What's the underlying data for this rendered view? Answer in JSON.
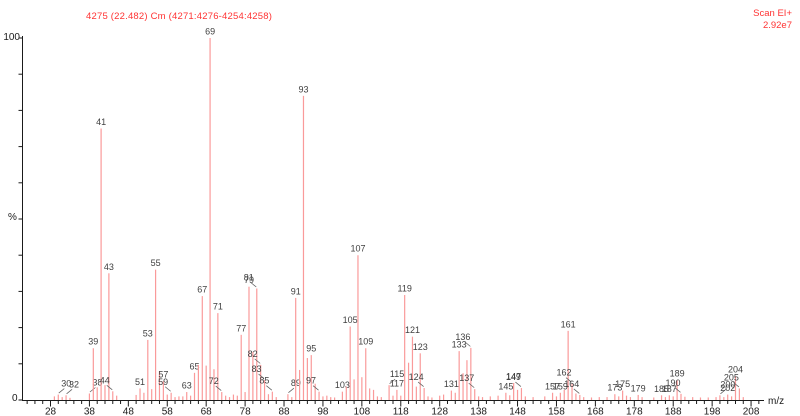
{
  "header": {
    "title": "4275 (22.482) Cm (4271:4276-4254:4258)",
    "scan_mode": "Scan EI+",
    "base_peak_intensity": "2.92e7"
  },
  "colors": {
    "peak": "#fa9a9a",
    "peak_label": "#404040",
    "axis": "#1a1a1a",
    "tick_label": "#1a1a1a",
    "header_red": "#ff3333",
    "callout_line": "#606060"
  },
  "chart_data": {
    "type": "bar",
    "subtype": "mass-spectrum-stick-plot",
    "title": "4275 (22.482) Cm (4271:4276-4254:4258)",
    "scan_mode": "Scan EI+",
    "base_peak_intensity": "2.92e7",
    "xlabel": "m/z",
    "ylabel": "%",
    "y_axis": {
      "top": "100",
      "mid": "%",
      "bottom": "0"
    },
    "xlim": [
      21,
      211
    ],
    "ylim": [
      0,
      100
    ],
    "grid": false,
    "x_major_ticks": [
      28,
      38,
      48,
      58,
      68,
      78,
      88,
      98,
      108,
      118,
      128,
      138,
      148,
      158,
      168,
      178,
      188,
      198,
      208
    ],
    "x_minor_tick_step": 2,
    "y_tick_step_pct": 10,
    "peaks_format": [
      "mz",
      "intensity_pct",
      "labeled",
      "callout_dir"
    ],
    "peaks": [
      [
        29,
        1.0,
        0,
        0
      ],
      [
        30,
        1.5,
        1,
        1
      ],
      [
        31,
        0.8,
        0,
        0
      ],
      [
        32,
        1.3,
        1,
        1
      ],
      [
        33,
        0.6,
        0,
        0
      ],
      [
        38,
        1.8,
        1,
        1
      ],
      [
        39,
        14.3,
        1,
        0
      ],
      [
        40,
        3.5,
        0,
        0
      ],
      [
        41,
        75,
        1,
        0
      ],
      [
        42,
        4.1,
        0,
        0
      ],
      [
        43,
        35,
        1,
        0
      ],
      [
        44,
        2.4,
        1,
        -1
      ],
      [
        45,
        1.2,
        0,
        0
      ],
      [
        50,
        1.4,
        0,
        0
      ],
      [
        51,
        3.2,
        1,
        0
      ],
      [
        52,
        2.0,
        0,
        0
      ],
      [
        53,
        16.6,
        1,
        0
      ],
      [
        54,
        3.0,
        0,
        0
      ],
      [
        55,
        36,
        1,
        0
      ],
      [
        56,
        8.0,
        0,
        0
      ],
      [
        57,
        5.2,
        1,
        0
      ],
      [
        58,
        1.5,
        0,
        0
      ],
      [
        59,
        2.0,
        1,
        -1
      ],
      [
        60,
        0.8,
        0,
        0
      ],
      [
        61,
        1.0,
        0,
        0
      ],
      [
        62,
        1.0,
        0,
        0
      ],
      [
        63,
        2.2,
        1,
        0
      ],
      [
        64,
        1.2,
        0,
        0
      ],
      [
        65,
        7.5,
        1,
        0
      ],
      [
        66,
        9.7,
        0,
        0
      ],
      [
        67,
        28.7,
        1,
        0
      ],
      [
        68,
        9.5,
        0,
        0
      ],
      [
        69,
        100,
        1,
        0
      ],
      [
        70,
        8.5,
        0,
        0
      ],
      [
        71,
        24,
        1,
        0
      ],
      [
        72,
        2.2,
        1,
        -1
      ],
      [
        73,
        1.2,
        0,
        0
      ],
      [
        74,
        0.8,
        0,
        0
      ],
      [
        75,
        1.5,
        0,
        0
      ],
      [
        76,
        1.2,
        0,
        0
      ],
      [
        77,
        18,
        1,
        0
      ],
      [
        78,
        2.2,
        0,
        0
      ],
      [
        79,
        31.3,
        1,
        0
      ],
      [
        80,
        13.3,
        0,
        0
      ],
      [
        81,
        30.8,
        1,
        -1
      ],
      [
        82,
        9.7,
        1,
        -1
      ],
      [
        83,
        5.5,
        1,
        -1
      ],
      [
        84,
        1.6,
        0,
        0
      ],
      [
        85,
        2.3,
        1,
        -1
      ],
      [
        86,
        0.8,
        0,
        0
      ],
      [
        89,
        1.6,
        1,
        1
      ],
      [
        90,
        0.8,
        0,
        0
      ],
      [
        91,
        28.2,
        1,
        0
      ],
      [
        92,
        8.3,
        0,
        0
      ],
      [
        93,
        84,
        1,
        0
      ],
      [
        94,
        11.6,
        0,
        0
      ],
      [
        95,
        12.4,
        1,
        0
      ],
      [
        96,
        4.5,
        0,
        0
      ],
      [
        97,
        2.3,
        1,
        -1
      ],
      [
        98,
        1.0,
        0,
        0
      ],
      [
        99,
        1.2,
        0,
        0
      ],
      [
        100,
        0.8,
        0,
        0
      ],
      [
        101,
        0.7,
        0,
        0
      ],
      [
        103,
        2.3,
        1,
        0
      ],
      [
        104,
        3.7,
        0,
        0
      ],
      [
        105,
        20.3,
        1,
        0
      ],
      [
        106,
        5.7,
        0,
        0
      ],
      [
        107,
        40,
        1,
        0
      ],
      [
        108,
        6.3,
        0,
        0
      ],
      [
        109,
        14.3,
        1,
        0
      ],
      [
        110,
        3.2,
        0,
        0
      ],
      [
        111,
        2.8,
        0,
        0
      ],
      [
        112,
        1.0,
        0,
        0
      ],
      [
        113,
        0.8,
        0,
        0
      ],
      [
        115,
        4.1,
        1,
        1
      ],
      [
        116,
        1.2,
        0,
        0
      ],
      [
        117,
        2.8,
        1,
        0
      ],
      [
        118,
        1.2,
        0,
        0
      ],
      [
        119,
        29,
        1,
        0
      ],
      [
        120,
        10.3,
        0,
        0
      ],
      [
        121,
        17.5,
        1,
        0
      ],
      [
        122,
        3.7,
        0,
        0
      ],
      [
        123,
        12.9,
        1,
        0
      ],
      [
        124,
        3.3,
        1,
        -1
      ],
      [
        125,
        1.0,
        0,
        0
      ],
      [
        126,
        0.7,
        0,
        0
      ],
      [
        128,
        1.2,
        0,
        0
      ],
      [
        129,
        1.5,
        0,
        0
      ],
      [
        131,
        2.6,
        1,
        0
      ],
      [
        132,
        2.0,
        0,
        0
      ],
      [
        133,
        13.5,
        1,
        0
      ],
      [
        134,
        7.4,
        0,
        0
      ],
      [
        135,
        11.0,
        0,
        0
      ],
      [
        136,
        14.4,
        1,
        -1
      ],
      [
        137,
        3.0,
        1,
        -1
      ],
      [
        138,
        1.0,
        0,
        0
      ],
      [
        139,
        0.8,
        0,
        0
      ],
      [
        141,
        1.0,
        0,
        0
      ],
      [
        143,
        1.2,
        0,
        0
      ],
      [
        145,
        2.0,
        1,
        0
      ],
      [
        146,
        1.3,
        0,
        0
      ],
      [
        147,
        4.7,
        1,
        0
      ],
      [
        148,
        2.8,
        0,
        0
      ],
      [
        149,
        3.3,
        1,
        -1
      ],
      [
        150,
        1.0,
        0,
        0
      ],
      [
        152,
        0.8,
        0,
        0
      ],
      [
        155,
        1.0,
        0,
        0
      ],
      [
        157,
        2.0,
        1,
        0
      ],
      [
        158,
        1.0,
        0,
        0
      ],
      [
        159,
        2.0,
        1,
        0
      ],
      [
        160,
        2.8,
        0,
        0
      ],
      [
        161,
        19.1,
        1,
        0
      ],
      [
        162,
        4.5,
        1,
        -1
      ],
      [
        163,
        1.8,
        0,
        0
      ],
      [
        164,
        1.4,
        1,
        -1
      ],
      [
        165,
        0.8,
        0,
        0
      ],
      [
        167,
        0.7,
        0,
        0
      ],
      [
        169,
        0.8,
        0,
        0
      ],
      [
        171,
        0.8,
        0,
        0
      ],
      [
        173,
        1.6,
        1,
        0
      ],
      [
        174,
        1.0,
        0,
        0
      ],
      [
        175,
        2.6,
        1,
        0
      ],
      [
        176,
        1.2,
        0,
        0
      ],
      [
        177,
        0.8,
        0,
        0
      ],
      [
        179,
        1.4,
        1,
        0
      ],
      [
        180,
        0.8,
        0,
        0
      ],
      [
        183,
        0.7,
        0,
        0
      ],
      [
        185,
        1.3,
        1,
        0
      ],
      [
        186,
        0.8,
        0,
        0
      ],
      [
        187,
        1.3,
        1,
        0
      ],
      [
        188,
        1.0,
        0,
        0
      ],
      [
        189,
        5.5,
        1,
        0
      ],
      [
        190,
        1.7,
        1,
        -1
      ],
      [
        191,
        0.9,
        0,
        0
      ],
      [
        193,
        0.8,
        0,
        0
      ],
      [
        195,
        0.7,
        0,
        0
      ],
      [
        197,
        0.7,
        0,
        0
      ],
      [
        199,
        0.8,
        0,
        0
      ],
      [
        200,
        1.3,
        1,
        1
      ],
      [
        201,
        0.8,
        0,
        0
      ],
      [
        202,
        1.5,
        1,
        0
      ],
      [
        203,
        1.0,
        0,
        0
      ],
      [
        204,
        6.6,
        1,
        0
      ],
      [
        205,
        3.2,
        1,
        -1
      ],
      [
        206,
        0.8,
        0,
        0
      ]
    ]
  }
}
